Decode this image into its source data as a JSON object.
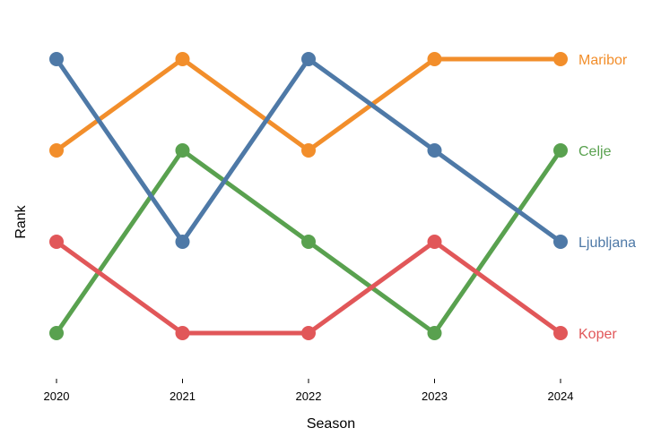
{
  "chart_data": {
    "type": "line",
    "chart_kind": "bump",
    "title": "",
    "xlabel": "Season",
    "ylabel": "Rank",
    "x": [
      "2020",
      "2021",
      "2022",
      "2023",
      "2024"
    ],
    "ylim": [
      0.5,
      4.5
    ],
    "y_inverted": true,
    "grid": false,
    "legend": "direct labels at right end of lines",
    "series": [
      {
        "name": "Maribor",
        "color": "#f28e2b",
        "values": [
          2,
          1,
          2,
          1,
          1
        ]
      },
      {
        "name": "Celje",
        "color": "#59a14f",
        "values": [
          4,
          2,
          3,
          4,
          2
        ]
      },
      {
        "name": "Ljubljana",
        "color": "#4e79a7",
        "values": [
          1,
          3,
          1,
          2,
          3
        ]
      },
      {
        "name": "Koper",
        "color": "#e15759",
        "values": [
          3,
          4,
          4,
          3,
          4
        ]
      }
    ]
  }
}
